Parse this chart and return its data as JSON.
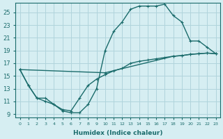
{
  "xlabel": "Humidex (Indice chaleur)",
  "background_color": "#d6eef2",
  "grid_color": "#b0d4dc",
  "line_color": "#1a6b6b",
  "xticks": [
    0,
    1,
    2,
    3,
    4,
    5,
    6,
    7,
    8,
    9,
    10,
    11,
    12,
    13,
    14,
    15,
    16,
    17,
    18,
    19,
    20,
    21,
    22,
    23
  ],
  "yticks": [
    9,
    11,
    13,
    15,
    17,
    19,
    21,
    23,
    25
  ],
  "curve1_x": [
    0,
    1,
    2,
    3,
    4,
    5,
    6,
    7,
    8,
    9,
    10,
    11,
    12,
    13,
    14,
    15,
    16,
    17,
    18,
    19,
    20,
    21,
    22,
    23
  ],
  "curve1_y": [
    16.0,
    13.5,
    11.5,
    11.0,
    10.5,
    9.5,
    9.2,
    9.2,
    10.5,
    13.0,
    19.0,
    22.0,
    23.5,
    25.5,
    26.0,
    26.0,
    26.0,
    26.3,
    24.5,
    23.5,
    20.5,
    20.5,
    19.5,
    18.5
  ],
  "curve2_x": [
    0,
    1,
    2,
    3,
    4,
    5,
    6,
    7,
    8,
    9,
    10,
    11,
    12,
    13,
    14,
    15,
    16,
    17,
    18,
    19,
    20,
    21,
    22,
    23
  ],
  "curve2_y": [
    16.0,
    13.5,
    11.5,
    11.5,
    10.5,
    9.7,
    9.5,
    11.5,
    13.5,
    14.5,
    15.2,
    15.8,
    16.2,
    17.0,
    17.3,
    17.5,
    17.7,
    17.9,
    18.1,
    18.2,
    18.4,
    18.5,
    18.6,
    18.5
  ],
  "curve3_x": [
    0,
    10,
    18,
    19,
    20,
    21,
    22,
    23
  ],
  "curve3_y": [
    16.0,
    15.5,
    18.1,
    18.2,
    18.4,
    18.5,
    18.6,
    18.5
  ]
}
